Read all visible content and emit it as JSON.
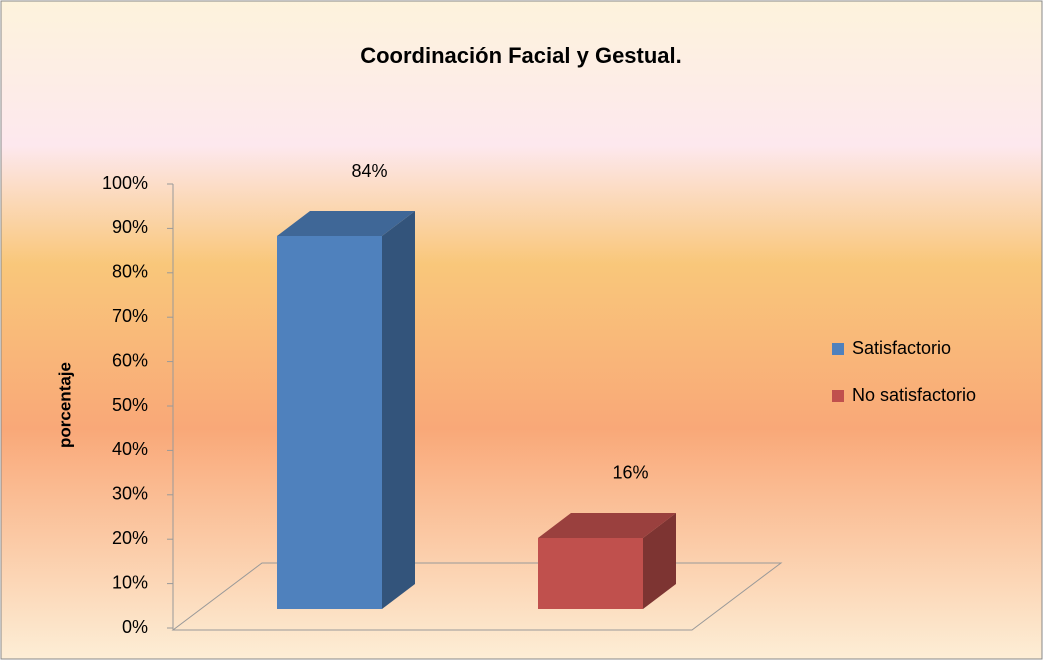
{
  "chart_data": {
    "type": "bar3d",
    "title": "Coordinación Facial y Gestual.",
    "y_label": "porcentaje",
    "categories": [
      null
    ],
    "series": [
      {
        "name": "Satisfactorio",
        "color": "#4f81bd",
        "values": [
          84
        ],
        "value_labels": [
          "84%"
        ]
      },
      {
        "name": "No satisfactorio",
        "color": "#c0504d",
        "values": [
          16
        ],
        "value_labels": [
          "16%"
        ]
      }
    ],
    "ylim": [
      0,
      100
    ],
    "yticks": [
      {
        "value": 0,
        "label": "0%"
      },
      {
        "value": 10,
        "label": "10%"
      },
      {
        "value": 20,
        "label": "20%"
      },
      {
        "value": 30,
        "label": "30%"
      },
      {
        "value": 40,
        "label": "40%"
      },
      {
        "value": 50,
        "label": "50%"
      },
      {
        "value": 60,
        "label": "60%"
      },
      {
        "value": 70,
        "label": "70%"
      },
      {
        "value": 80,
        "label": "80%"
      },
      {
        "value": 90,
        "label": "90%"
      },
      {
        "value": 100,
        "label": "100%"
      }
    ],
    "legend": "right"
  }
}
